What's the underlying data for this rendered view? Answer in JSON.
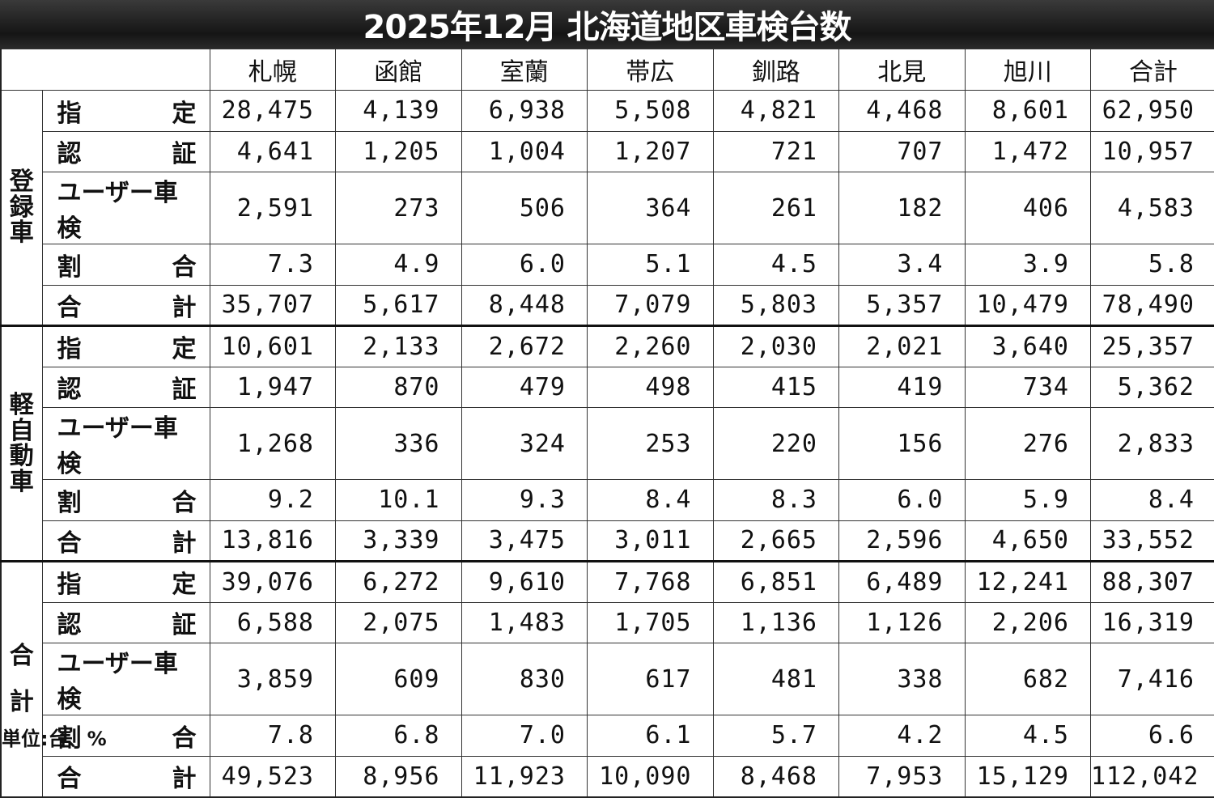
{
  "title": "2025年12月  北海道地区車検台数",
  "columns": [
    "札幌",
    "函館",
    "室蘭",
    "帯広",
    "釧路",
    "北見",
    "旭川",
    "合計"
  ],
  "groups": [
    {
      "name_chars": [
        "登",
        "録",
        "車"
      ],
      "rows": [
        {
          "label": "指　定",
          "spread": [
            "指",
            "定"
          ],
          "values": [
            "28,475",
            "4,139",
            "6,938",
            "5,508",
            "4,821",
            "4,468",
            "8,601",
            "62,950"
          ]
        },
        {
          "label": "認　証",
          "spread": [
            "認",
            "証"
          ],
          "values": [
            "4,641",
            "1,205",
            "1,004",
            "1,207",
            "721",
            "707",
            "1,472",
            "10,957"
          ]
        },
        {
          "label": "ユーザー車検",
          "spread": [
            "ユーザー車検"
          ],
          "values": [
            "2,591",
            "273",
            "506",
            "364",
            "261",
            "182",
            "406",
            "4,583"
          ]
        },
        {
          "label": "割　合",
          "spread": [
            "割",
            "合"
          ],
          "values": [
            "7.3",
            "4.9",
            "6.0",
            "5.1",
            "4.5",
            "3.4",
            "3.9",
            "5.8"
          ]
        },
        {
          "label": "合　計",
          "spread": [
            "合",
            "計"
          ],
          "values": [
            "35,707",
            "5,617",
            "8,448",
            "7,079",
            "5,803",
            "5,357",
            "10,479",
            "78,490"
          ]
        }
      ]
    },
    {
      "name_chars": [
        "軽",
        "自",
        "動",
        "車"
      ],
      "rows": [
        {
          "label": "指　定",
          "spread": [
            "指",
            "定"
          ],
          "values": [
            "10,601",
            "2,133",
            "2,672",
            "2,260",
            "2,030",
            "2,021",
            "3,640",
            "25,357"
          ]
        },
        {
          "label": "認　証",
          "spread": [
            "認",
            "証"
          ],
          "values": [
            "1,947",
            "870",
            "479",
            "498",
            "415",
            "419",
            "734",
            "5,362"
          ]
        },
        {
          "label": "ユーザー車検",
          "spread": [
            "ユーザー車検"
          ],
          "values": [
            "1,268",
            "336",
            "324",
            "253",
            "220",
            "156",
            "276",
            "2,833"
          ]
        },
        {
          "label": "割　合",
          "spread": [
            "割",
            "合"
          ],
          "values": [
            "9.2",
            "10.1",
            "9.3",
            "8.4",
            "8.3",
            "6.0",
            "5.9",
            "8.4"
          ]
        },
        {
          "label": "合　計",
          "spread": [
            "合",
            "計"
          ],
          "values": [
            "13,816",
            "3,339",
            "3,475",
            "3,011",
            "2,665",
            "2,596",
            "4,650",
            "33,552"
          ]
        }
      ]
    },
    {
      "name_chars": [
        "合",
        "",
        "計"
      ],
      "rows": [
        {
          "label": "指　定",
          "spread": [
            "指",
            "定"
          ],
          "values": [
            "39,076",
            "6,272",
            "9,610",
            "7,768",
            "6,851",
            "6,489",
            "12,241",
            "88,307"
          ]
        },
        {
          "label": "認　証",
          "spread": [
            "認",
            "証"
          ],
          "values": [
            "6,588",
            "2,075",
            "1,483",
            "1,705",
            "1,136",
            "1,126",
            "2,206",
            "16,319"
          ]
        },
        {
          "label": "ユーザー車検",
          "spread": [
            "ユーザー車検"
          ],
          "values": [
            "3,859",
            "609",
            "830",
            "617",
            "481",
            "338",
            "682",
            "7,416"
          ]
        },
        {
          "label": "割　合",
          "spread": [
            "割",
            "合"
          ],
          "values": [
            "7.8",
            "6.8",
            "7.0",
            "6.1",
            "5.7",
            "4.2",
            "4.5",
            "6.6"
          ]
        },
        {
          "label": "合　計",
          "spread": [
            "合",
            "計"
          ],
          "values": [
            "49,523",
            "8,956",
            "11,923",
            "10,090",
            "8,468",
            "7,953",
            "15,129",
            "112,042"
          ]
        }
      ]
    }
  ],
  "unit_note": "単位:台、%"
}
